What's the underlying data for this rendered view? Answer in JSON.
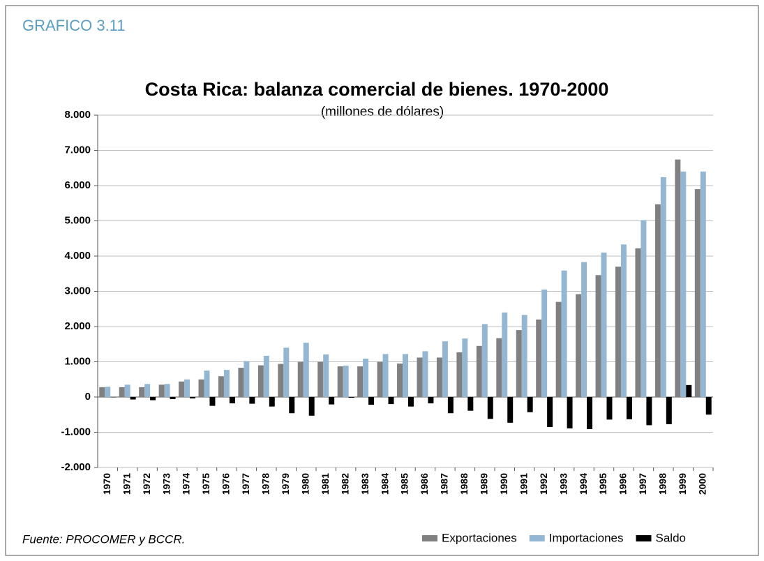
{
  "header": "GRAFICO 3.11",
  "source": "Fuente: PROCOMER y BCCR.",
  "chart_data": {
    "type": "bar",
    "title": "Costa Rica: balanza comercial de bienes. 1970-2000",
    "subtitle": "(millones de dólares)",
    "categories": [
      "1970",
      "1971",
      "1972",
      "1973",
      "1974",
      "1975",
      "1976",
      "1977",
      "1978",
      "1979",
      "1980",
      "1981",
      "1982",
      "1983",
      "1984",
      "1985",
      "1986",
      "1987",
      "1988",
      "1989",
      "1990",
      "1991",
      "1992",
      "1993",
      "1994",
      "1995",
      "1996",
      "1997",
      "1998",
      "1999",
      "2000"
    ],
    "series": [
      {
        "name": "Exportaciones",
        "color": "#808080",
        "values": [
          280,
          280,
          280,
          350,
          440,
          500,
          590,
          830,
          900,
          940,
          1000,
          1000,
          870,
          870,
          1000,
          950,
          1120,
          1120,
          1270,
          1450,
          1670,
          1900,
          2200,
          2700,
          2920,
          3460,
          3700,
          4220,
          5470,
          6740,
          5900
        ]
      },
      {
        "name": "Importaciones",
        "color": "#93b7d2",
        "values": [
          290,
          350,
          370,
          370,
          500,
          750,
          770,
          1020,
          1170,
          1400,
          1540,
          1210,
          890,
          1090,
          1220,
          1220,
          1300,
          1580,
          1660,
          2070,
          2400,
          2330,
          3050,
          3590,
          3830,
          4100,
          4330,
          5020,
          6240,
          6400,
          6400
        ]
      },
      {
        "name": "Saldo",
        "color": "#000000",
        "values": [
          -10,
          -70,
          -90,
          -60,
          -40,
          -250,
          -180,
          -190,
          -270,
          -460,
          -530,
          -210,
          -20,
          -220,
          -200,
          -270,
          -180,
          -460,
          -390,
          -620,
          -730,
          -430,
          -850,
          -890,
          -910,
          -640,
          -630,
          -800,
          -770,
          340,
          -500
        ]
      }
    ],
    "ylim": [
      -2000,
      8000
    ],
    "yticks": [
      {
        "value": -2000,
        "label": "-2.000"
      },
      {
        "value": -1000,
        "label": "-1.000"
      },
      0,
      {
        "value": 1000,
        "label": "1.000"
      },
      {
        "value": 2000,
        "label": "2.000"
      },
      {
        "value": 3000,
        "label": "3.000"
      },
      {
        "value": 4000,
        "label": "4.000"
      },
      {
        "value": 5000,
        "label": "5.000"
      },
      {
        "value": 6000,
        "label": "6.000"
      },
      {
        "value": 7000,
        "label": "7.000"
      },
      {
        "value": 8000,
        "label": "8.000"
      }
    ],
    "grid": true,
    "legend": "bottom-right"
  }
}
